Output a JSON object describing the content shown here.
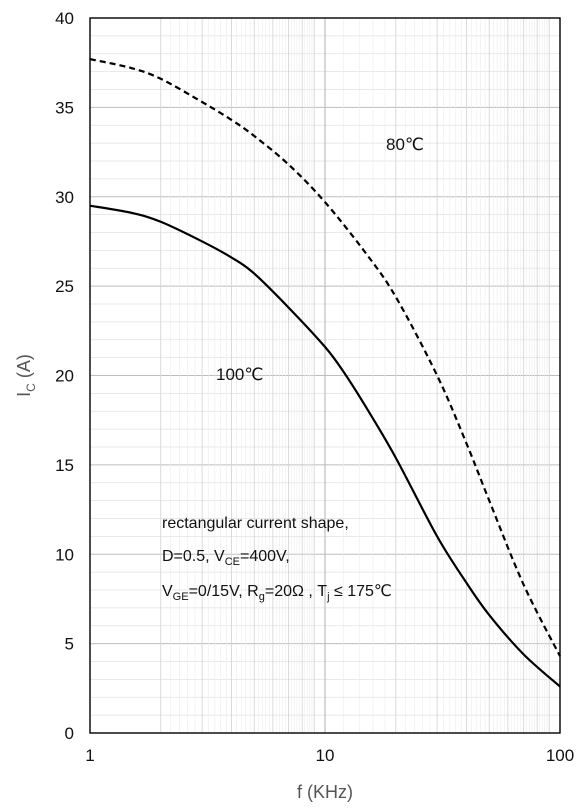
{
  "chart_data": {
    "type": "line",
    "xscale": "log",
    "xlim": [
      1,
      100
    ],
    "ylim": [
      0,
      40
    ],
    "xticks": [
      "1",
      "10",
      "100"
    ],
    "yticks": [
      "0",
      "5",
      "10",
      "15",
      "20",
      "25",
      "30",
      "35",
      "40"
    ],
    "xlabel": "f (KHz)",
    "ylabel": {
      "main": "I",
      "sub": "C",
      "unit": " (A)"
    },
    "grid": true,
    "series": [
      {
        "name": "80℃",
        "style": "dashed",
        "color": "#000000",
        "x": [
          1,
          1.5,
          2,
          3,
          4,
          5,
          7,
          10,
          15,
          20,
          30,
          40,
          50,
          70,
          100
        ],
        "y": [
          37.7,
          37.2,
          36.6,
          35.3,
          34.3,
          33.4,
          31.8,
          29.7,
          26.8,
          24.4,
          20.0,
          16.2,
          13.0,
          8.3,
          4.3
        ]
      },
      {
        "name": "100℃",
        "style": "solid",
        "color": "#000000",
        "x": [
          1,
          1.5,
          2,
          3,
          4,
          5,
          7,
          10,
          12,
          15,
          20,
          30,
          40,
          50,
          70,
          100
        ],
        "y": [
          29.5,
          29.1,
          28.6,
          27.5,
          26.6,
          25.7,
          23.8,
          21.6,
          20.2,
          18.2,
          15.4,
          11.0,
          8.4,
          6.6,
          4.4,
          2.6
        ]
      }
    ],
    "annotations": {
      "line1": "rectangular current shape,",
      "line2": {
        "a": "D=0.5,  V",
        "b": "CE",
        "c": "=400V,"
      },
      "line3": {
        "a": "V",
        "b": "GE",
        "c": "=0/15V,  R",
        "d": "g",
        "e": "=20Ω  , T",
        "f": "j",
        "g": " ≤ 175℃"
      }
    }
  }
}
